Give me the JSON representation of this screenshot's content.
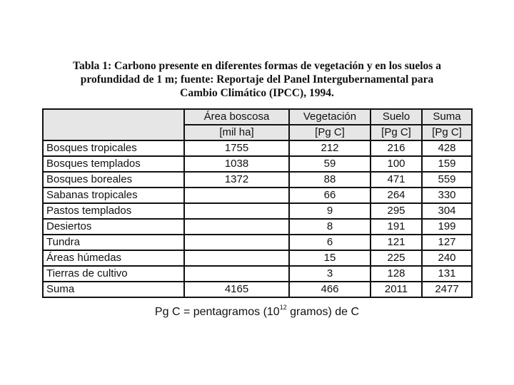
{
  "caption": [
    "Tabla 1: Carbono presente en diferentes formas de vegetación y en los suelos a",
    "profundidad de 1 m; fuente: Reportaje del Panel Intergubernamental para",
    "Cambio Climático (IPCC), 1994."
  ],
  "headers": [
    "Área boscosa",
    "Vegetación",
    "Suelo",
    "Suma"
  ],
  "units": [
    "[mil ha]",
    "[Pg C]",
    "[Pg C]",
    "[Pg C]"
  ],
  "rows": [
    [
      "Bosques tropicales",
      "1755",
      "212",
      "216",
      "428"
    ],
    [
      "Bosques templados",
      "1038",
      "59",
      "100",
      "159"
    ],
    [
      "Bosques boreales",
      "1372",
      "88",
      "471",
      "559"
    ],
    [
      "Sabanas tropicales",
      "",
      "66",
      "264",
      "330"
    ],
    [
      "Pastos templados",
      "",
      "9",
      "295",
      "304"
    ],
    [
      "Desiertos",
      "",
      "8",
      "191",
      "199"
    ],
    [
      "Tundra",
      "",
      "6",
      "121",
      "127"
    ],
    [
      "Áreas húmedas",
      "",
      "15",
      "225",
      "240"
    ],
    [
      "Tierras de cultivo",
      "",
      "3",
      "128",
      "131"
    ],
    [
      "Suma",
      "4165",
      "466",
      "2011",
      "2477"
    ]
  ],
  "footnote": {
    "pre": "Pg C = pentagramos (10",
    "sup": "12",
    "post": " gramos) de C"
  }
}
